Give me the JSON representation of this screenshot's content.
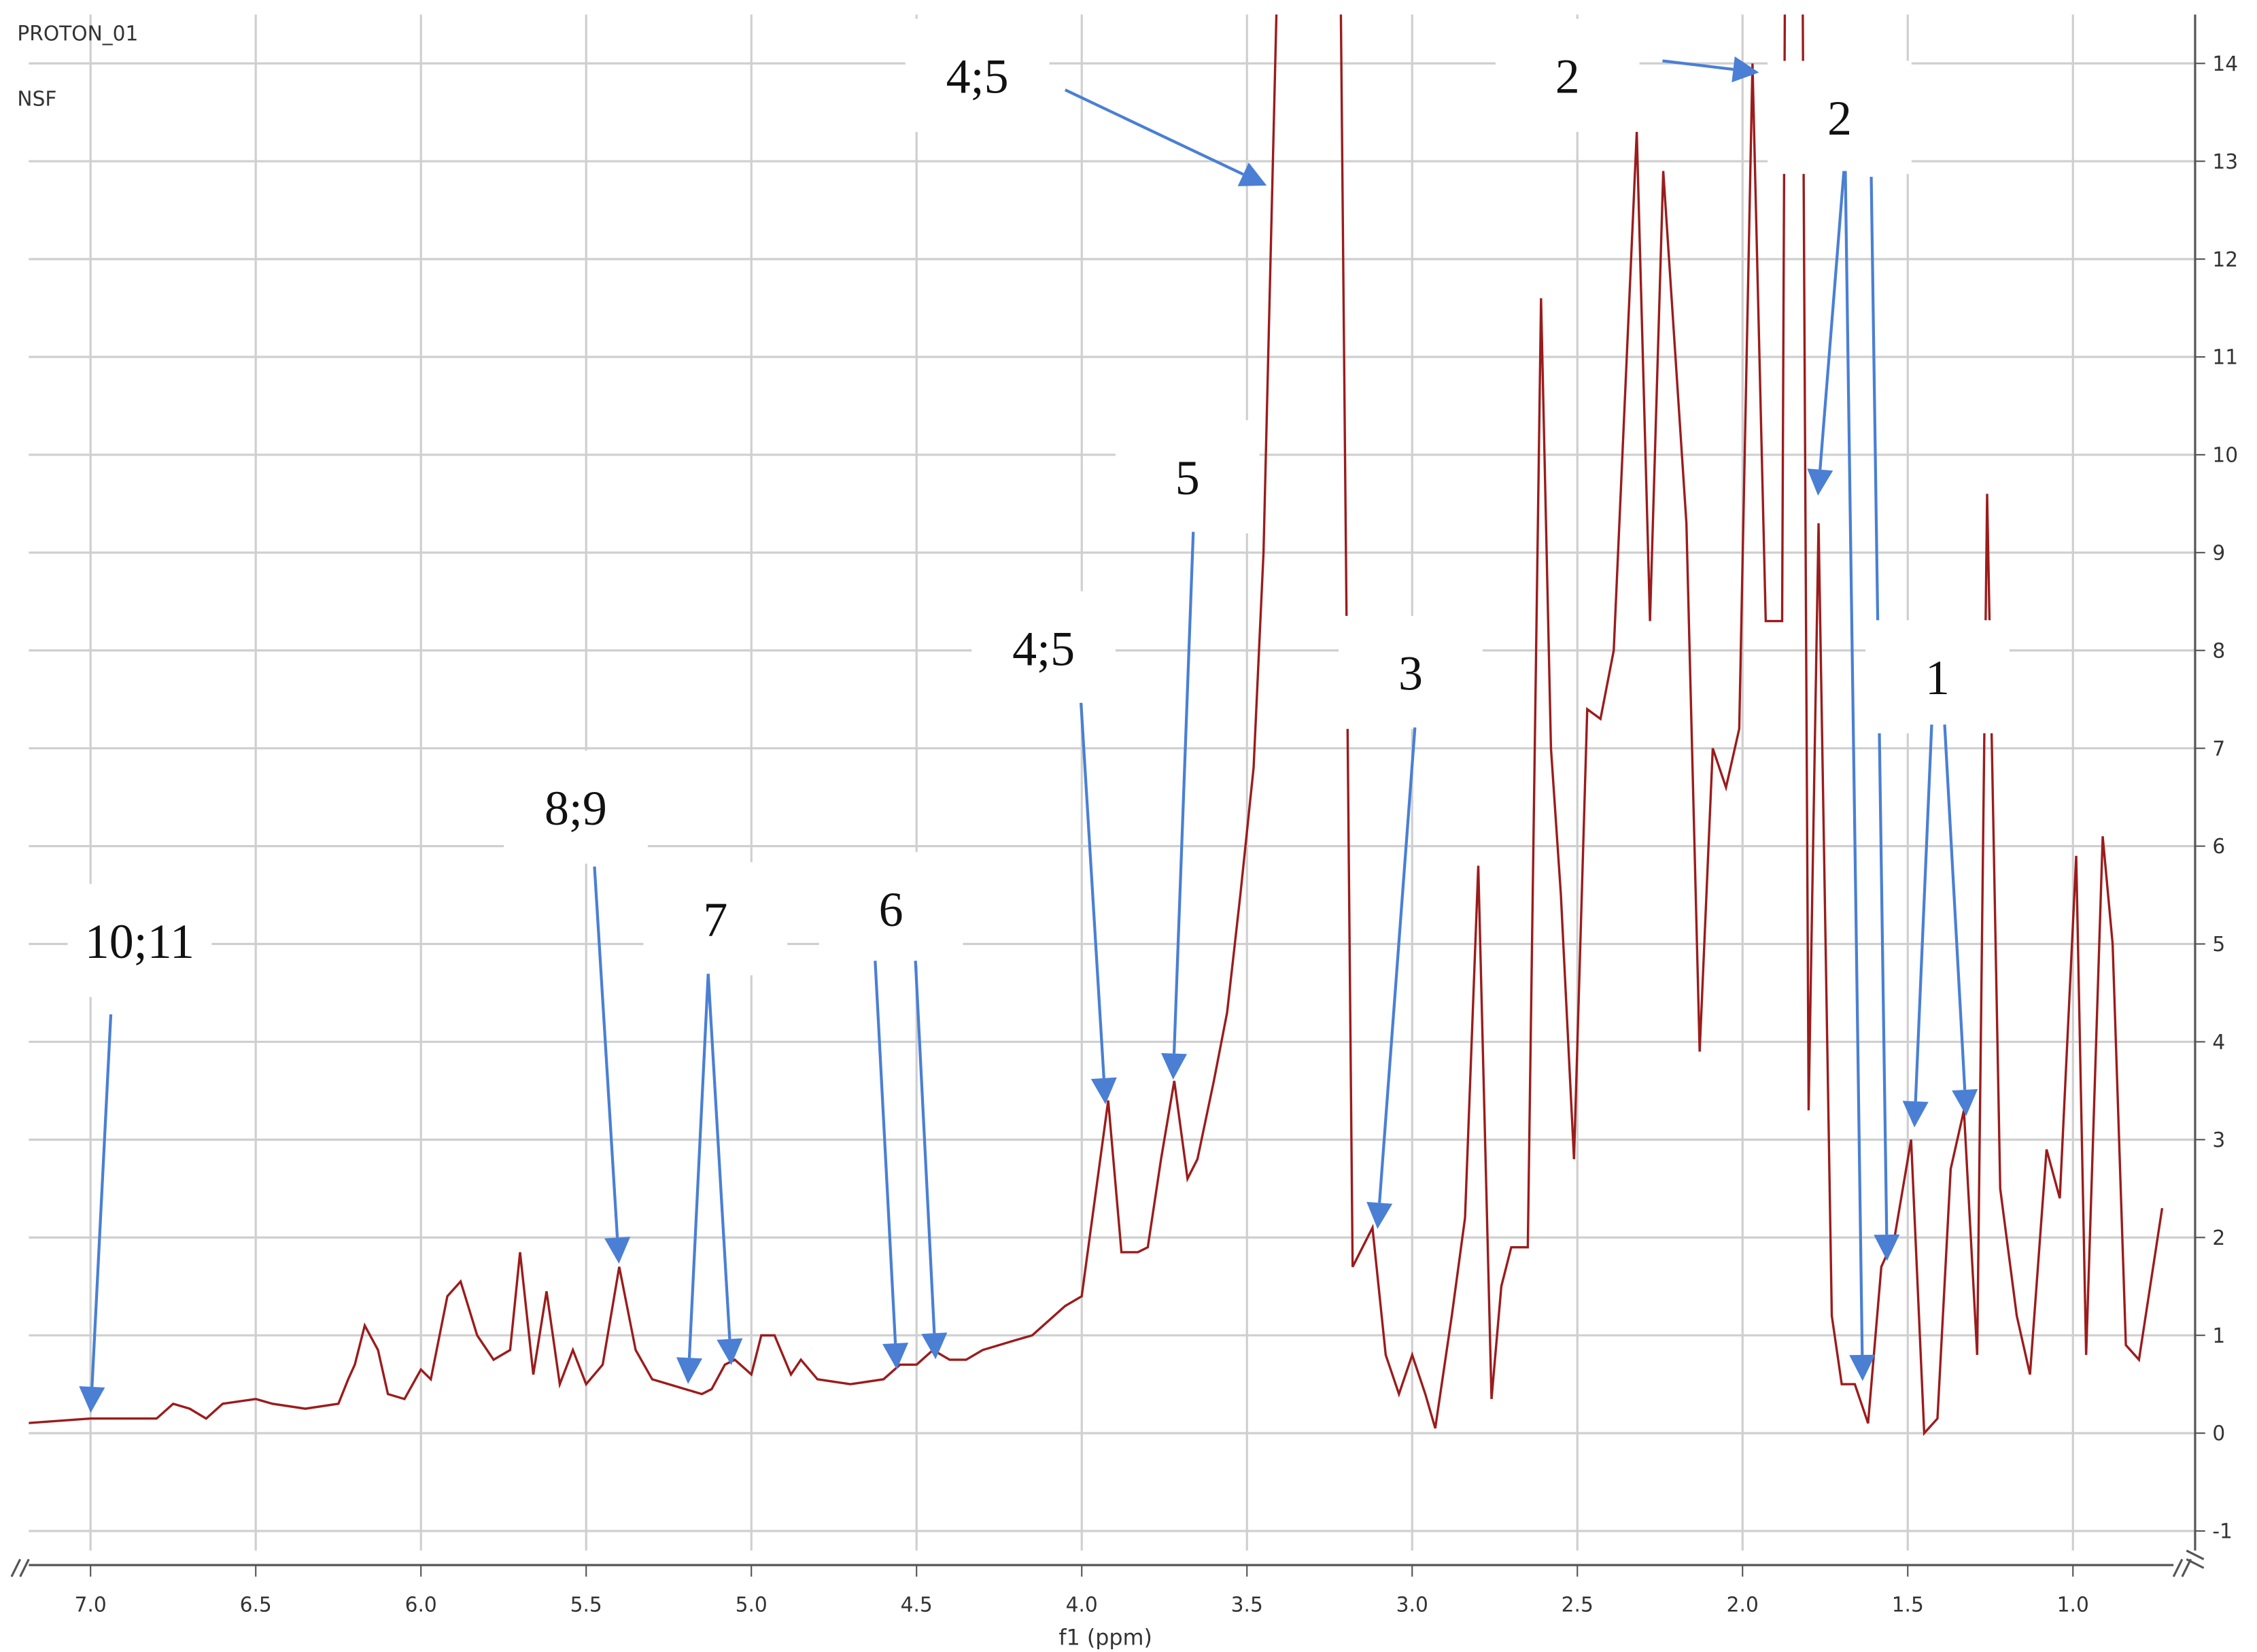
{
  "chart_data": {
    "type": "line",
    "header_lines": [
      "PROTON_01",
      "NSF"
    ],
    "xlabel": "f1 (ppm)",
    "xlim": [
      7.2,
      0.7
    ],
    "ylim": [
      -1.2,
      14.5
    ],
    "xticks": [
      {
        "value": 7,
        "label": "7.0"
      },
      6.5,
      {
        "value": 6,
        "label": "6.0"
      },
      5.5,
      {
        "value": 5,
        "label": "5.0"
      },
      4.5,
      {
        "value": 4,
        "label": "4.0"
      },
      3.5,
      {
        "value": 3,
        "label": "3.0"
      },
      2.5,
      {
        "value": 2,
        "label": "2.0"
      },
      1.5,
      {
        "value": 1,
        "label": "1.0"
      }
    ],
    "yticks": [
      -1,
      0,
      1,
      2,
      3,
      4,
      5,
      6,
      7,
      8,
      9,
      10,
      11,
      12,
      13,
      14
    ],
    "grid": true,
    "annotations": [
      "10;11",
      "8;9",
      "7",
      "6",
      "4;5",
      "5",
      "4;5",
      "3",
      "2",
      "2",
      "1"
    ],
    "x": [
      7.2,
      7.0,
      6.9,
      6.8,
      6.75,
      6.7,
      6.65,
      6.6,
      6.5,
      6.45,
      6.35,
      6.25,
      6.22,
      6.2,
      6.17,
      6.13,
      6.1,
      6.05,
      6.0,
      5.97,
      5.92,
      5.88,
      5.83,
      5.78,
      5.73,
      5.7,
      5.66,
      5.62,
      5.58,
      5.54,
      5.5,
      5.45,
      5.4,
      5.35,
      5.3,
      5.2,
      5.15,
      5.12,
      5.08,
      5.05,
      5.0,
      4.97,
      4.93,
      4.88,
      4.85,
      4.8,
      4.7,
      4.6,
      4.55,
      4.5,
      4.45,
      4.4,
      4.35,
      4.3,
      4.2,
      4.15,
      4.05,
      4.0,
      3.92,
      3.88,
      3.83,
      3.8,
      3.76,
      3.72,
      3.68,
      3.65,
      3.6,
      3.56,
      3.52,
      3.48,
      3.45,
      3.4,
      3.22,
      3.18,
      3.12,
      3.08,
      3.04,
      3.0,
      2.96,
      2.93,
      2.88,
      2.84,
      2.8,
      2.76,
      2.73,
      2.7,
      2.65,
      2.61,
      2.58,
      2.55,
      2.51,
      2.47,
      2.43,
      2.39,
      2.32,
      2.28,
      2.24,
      2.17,
      2.13,
      2.09,
      2.05,
      2.01,
      1.97,
      1.93,
      1.88,
      1.87,
      1.82,
      1.8,
      1.77,
      1.73,
      1.7,
      1.66,
      1.62,
      1.58,
      1.54,
      1.49,
      1.45,
      1.41,
      1.37,
      1.33,
      1.29,
      1.26,
      1.22,
      1.17,
      1.13,
      1.08,
      1.04,
      0.99,
      0.96,
      0.91,
      0.88,
      0.84,
      0.8,
      0.73
    ],
    "series": [
      {
        "color": "#9b1c1c",
        "values": [
          0.1,
          0.15,
          0.15,
          0.15,
          0.3,
          0.25,
          0.15,
          0.3,
          0.35,
          0.3,
          0.25,
          0.3,
          0.55,
          0.7,
          1.1,
          0.85,
          0.4,
          0.35,
          0.65,
          0.55,
          1.4,
          1.55,
          1.0,
          0.75,
          0.85,
          1.85,
          0.6,
          1.45,
          0.5,
          0.85,
          0.5,
          0.7,
          1.7,
          0.85,
          0.55,
          0.45,
          0.4,
          0.45,
          0.7,
          0.75,
          0.6,
          1.0,
          1.0,
          0.6,
          0.75,
          0.55,
          0.5,
          0.55,
          0.7,
          0.7,
          0.85,
          0.75,
          0.75,
          0.85,
          0.95,
          1.0,
          1.3,
          1.4,
          3.4,
          1.85,
          1.85,
          1.9,
          2.8,
          3.6,
          2.6,
          2.8,
          3.6,
          4.3,
          5.5,
          6.8,
          9.0,
          16,
          16,
          1.7,
          2.1,
          0.8,
          0.4,
          0.8,
          0.4,
          0.05,
          1.2,
          2.2,
          5.8,
          0.35,
          1.5,
          1.9,
          1.9,
          11.6,
          7.0,
          5.5,
          2.8,
          7.4,
          7.3,
          8.0,
          13.3,
          8.3,
          12.9,
          9.3,
          3.9,
          7.0,
          6.6,
          7.2,
          14.0,
          8.3,
          8.3,
          16,
          16,
          3.3,
          9.3,
          1.2,
          0.5,
          0.5,
          0.1,
          1.7,
          2.0,
          3.0,
          0.0,
          0.15,
          2.7,
          3.3,
          0.8,
          9.6,
          2.5,
          1.2,
          0.6,
          2.9,
          2.4,
          5.9,
          0.8,
          6.1,
          5.0,
          0.9,
          0.75,
          2.3
        ]
      }
    ]
  }
}
